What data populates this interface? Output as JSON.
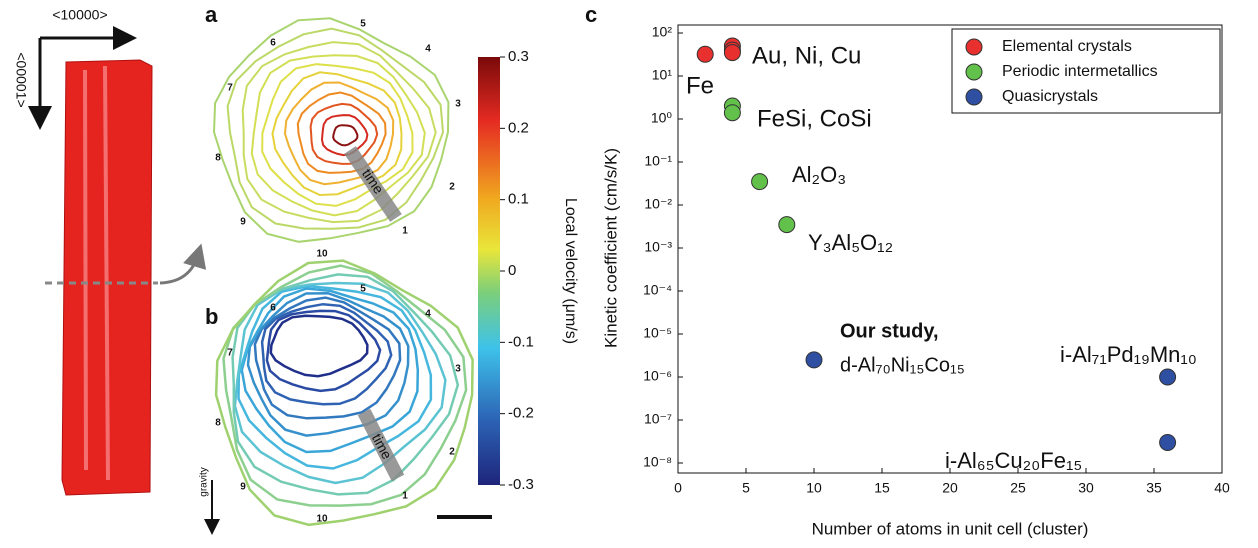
{
  "panel_labels": [
    "a",
    "b",
    "c"
  ],
  "crystal": {
    "x_direction": "<10000>",
    "y_direction": "<00001>"
  },
  "contours": {
    "arrow_label": "time",
    "gravity": "gravity",
    "a_numbers": [
      "5",
      "4",
      "3",
      "2",
      "1",
      "10",
      "9",
      "8",
      "7",
      "6"
    ],
    "b_numbers": [
      "5",
      "4",
      "3",
      "2",
      "1",
      "10",
      "9",
      "8",
      "7",
      "6"
    ]
  },
  "colorbar": {
    "label": "Local velocity (μm/s)",
    "lim": [
      -0.3,
      0.3
    ],
    "ticks": [
      0.3,
      0.2,
      0.1,
      0,
      -0.1,
      -0.2,
      -0.3
    ]
  },
  "chart_data": {
    "type": "scatter",
    "xlabel": "Number of atoms in unit cell (cluster)",
    "ylabel": "Kinetic coefficient (cm/s/K)",
    "log_y": true,
    "legend": "upper right",
    "xlim": [
      0,
      40
    ],
    "xticks": [
      0,
      5,
      10,
      15,
      20,
      25,
      30,
      35,
      40
    ],
    "ylim": [
      1e-08,
      100
    ],
    "yticks": [
      {
        "value": 1e-08,
        "label": "10⁻⁸"
      },
      {
        "value": 1e-07,
        "label": "10⁻⁷"
      },
      {
        "value": 1e-06,
        "label": "10⁻⁶"
      },
      {
        "value": 1e-05,
        "label": "10⁻⁵"
      },
      {
        "value": 0.0001,
        "label": "10⁻⁴"
      },
      {
        "value": 0.001,
        "label": "10⁻³"
      },
      {
        "value": 0.01,
        "label": "10⁻²"
      },
      {
        "value": 0.1,
        "label": "10⁻¹"
      },
      {
        "value": 1,
        "label": "10⁰"
      },
      {
        "value": 10,
        "label": "10¹"
      },
      {
        "value": 100,
        "label": "10²"
      }
    ],
    "series": [
      {
        "name": "Elemental crystals",
        "color": "#e8312f",
        "x": [
          2,
          4,
          4,
          4
        ],
        "values": [
          32,
          50,
          40,
          35
        ]
      },
      {
        "name": "Periodic intermetallics",
        "color": "#62c14a",
        "x": [
          4,
          4,
          6,
          8
        ],
        "values": [
          2,
          1.4,
          0.035,
          0.0035
        ]
      },
      {
        "name": "Quasicrystals",
        "color": "#2f4fa3",
        "x": [
          10,
          36,
          36
        ],
        "values": [
          2.5e-06,
          1e-06,
          3e-08
        ]
      }
    ],
    "annotations": [
      "Au, Ni, Cu",
      "Fe",
      "FeSi, CoSi",
      "Al₂O₃",
      "Y₃Al₅O₁₂",
      "Our study,",
      "d-Al₇₀Ni₁₅Co₁₅",
      "i-Al₇₁Pd₁₉Mn₁₀",
      "i-Al₆₅Cu₂₀Fe₁₅"
    ]
  }
}
